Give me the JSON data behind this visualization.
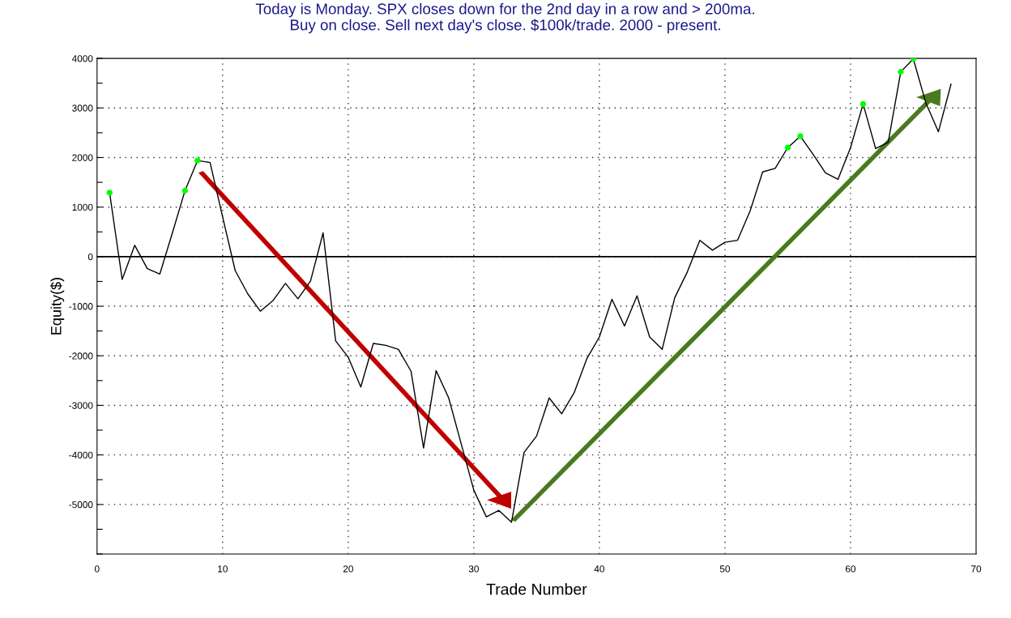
{
  "chart_data": {
    "type": "line",
    "title": "Today is Monday. SPX closes down for the 2nd day in a row and > 200ma.\nBuy on close. Sell next day's close. $100k/trade. 2000 - present.",
    "xlabel": "Trade Number",
    "ylabel": "Equity($)",
    "series": [
      {
        "color": "#000000",
        "marker": "none",
        "x": [
          1,
          2,
          3,
          4,
          5,
          6,
          7,
          8,
          9,
          10,
          11,
          12,
          13,
          14,
          15,
          16,
          17,
          18,
          19,
          20,
          21,
          22,
          23,
          24,
          25,
          26,
          27,
          28,
          29,
          30,
          31,
          32,
          33,
          34,
          35,
          36,
          37,
          38,
          39,
          40,
          41,
          42,
          43,
          44,
          45,
          46,
          47,
          48,
          49,
          50,
          51,
          52,
          53,
          54,
          55,
          56,
          57,
          58,
          59,
          60,
          61,
          62,
          63,
          64,
          65,
          66,
          67,
          68
        ],
        "values": [
          1290,
          -460,
          230,
          -240,
          -350,
          480,
          1330,
          1940,
          1900,
          800,
          -280,
          -750,
          -1100,
          -890,
          -540,
          -850,
          -490,
          480,
          -1700,
          -2030,
          -2630,
          -1750,
          -1790,
          -1870,
          -2310,
          -3860,
          -2300,
          -2850,
          -3780,
          -4710,
          -5250,
          -5120,
          -5360,
          -3950,
          -3620,
          -2850,
          -3170,
          -2740,
          -2060,
          -1620,
          -860,
          -1400,
          -790,
          -1620,
          -1870,
          -830,
          -310,
          330,
          130,
          290,
          330,
          920,
          1710,
          1780,
          2200,
          2430,
          2070,
          1690,
          1560,
          2200,
          3080,
          2180,
          2310,
          3730,
          3990,
          3100,
          2520,
          3480
        ]
      },
      {
        "type": "scatter",
        "color": "#00ff00",
        "marker": "circle",
        "x": [
          1,
          7,
          8,
          55,
          56,
          61,
          64,
          65
        ],
        "values": [
          1290,
          1330,
          1940,
          2200,
          2430,
          3080,
          3730,
          3990
        ]
      }
    ],
    "xlim": [
      0,
      70
    ],
    "xticks": [
      0,
      10,
      20,
      30,
      40,
      50,
      60,
      70
    ],
    "ylim": [
      -6000,
      4000
    ],
    "yticks": [
      {
        "value": -6000,
        "label": null
      },
      {
        "value": -5500,
        "label": null
      },
      -5000,
      {
        "value": -4500,
        "label": null
      },
      -4000,
      {
        "value": -3500,
        "label": null
      },
      -3000,
      {
        "value": -2500,
        "label": null
      },
      -2000,
      {
        "value": -1500,
        "label": null
      },
      -1000,
      {
        "value": -500,
        "label": null
      },
      0,
      {
        "value": 500,
        "label": null
      },
      1000,
      {
        "value": 1500,
        "label": null
      },
      2000,
      {
        "value": 2500,
        "label": null
      },
      3000,
      {
        "value": 3500,
        "label": null
      },
      4000
    ],
    "ref_lines": [
      {
        "axis": "y",
        "value": 0,
        "color": "#000000",
        "line_style": "solid"
      }
    ],
    "grid": true
  }
}
